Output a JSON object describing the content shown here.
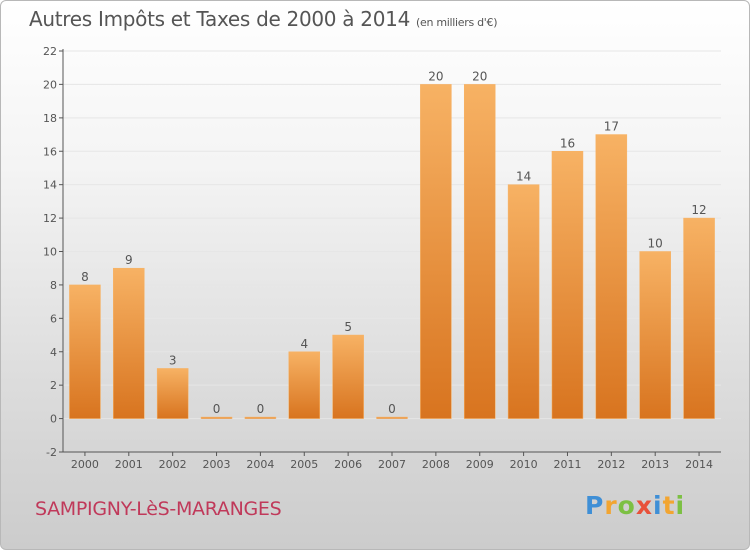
{
  "title": "Autres Impôts et Taxes de 2000 à 2014",
  "unit": "(en milliers d'€)",
  "commune": "SAMPIGNY-LèS-MARANGES",
  "logo": {
    "letters": [
      "P",
      "r",
      "o",
      "x",
      "i",
      "t",
      "i"
    ],
    "colors": [
      "#3f8fd6",
      "#f2a531",
      "#7cc043",
      "#e8513a",
      "#3f8fd6",
      "#f2a531",
      "#7cc043"
    ]
  },
  "colors": {
    "bar": "#f0923a",
    "bar_light": "#f7b264",
    "bar_dark": "#d8741f",
    "axis": "#555555",
    "grid": "#e6e6e6"
  },
  "chart_data": {
    "type": "bar",
    "categories": [
      "2000",
      "2001",
      "2002",
      "2003",
      "2004",
      "2005",
      "2006",
      "2007",
      "2008",
      "2009",
      "2010",
      "2011",
      "2012",
      "2013",
      "2014"
    ],
    "values": [
      8,
      9,
      3,
      0,
      0,
      4,
      5,
      0,
      20,
      20,
      14,
      16,
      17,
      10,
      12
    ],
    "ylim": [
      -2,
      22
    ],
    "yticks": [
      -2,
      0,
      2,
      4,
      6,
      8,
      10,
      12,
      14,
      16,
      18,
      20,
      22
    ],
    "grid": true,
    "data_labels": true
  }
}
